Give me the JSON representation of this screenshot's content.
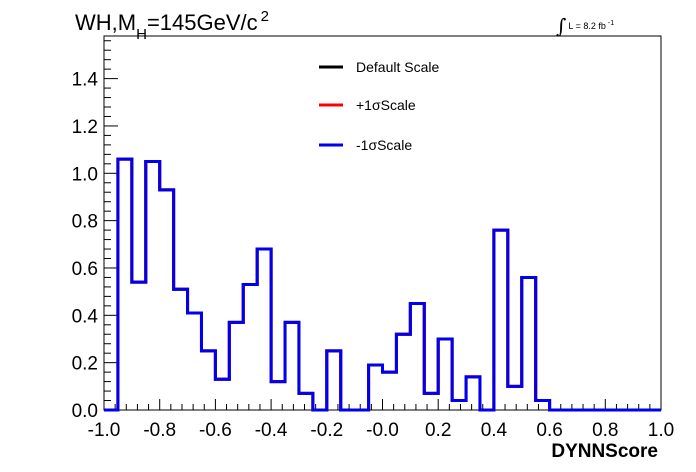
{
  "title": {
    "prefix": "WH,M",
    "subscript": "H",
    "value": "=145GeV/c",
    "superscript": "2"
  },
  "luminosity": {
    "integral_symbol": "∫",
    "text": "L = 8.2 fb",
    "superscript": "-1"
  },
  "chart_data": {
    "type": "line",
    "style": "step-histogram",
    "title": "WH,M_H=145GeV/c^2",
    "xlabel": "DYNNScore",
    "ylabel": "",
    "xlim": [
      -1.0,
      1.0
    ],
    "ylim": [
      0.0,
      1.58
    ],
    "x_ticks": [
      "-1.0",
      "-0.8",
      "-0.6",
      "-0.4",
      "-0.2",
      "-0.0",
      "0.2",
      "0.4",
      "0.6",
      "0.8",
      "1.0"
    ],
    "y_ticks": [
      "0.0",
      "0.2",
      "0.4",
      "0.6",
      "0.8",
      "1.0",
      "1.2",
      "1.4"
    ],
    "bin_edges": [
      -1.0,
      -0.95,
      -0.9,
      -0.85,
      -0.8,
      -0.75,
      -0.7,
      -0.65,
      -0.6,
      -0.55,
      -0.5,
      -0.45,
      -0.4,
      -0.35,
      -0.3,
      -0.25,
      -0.2,
      -0.15,
      -0.1,
      -0.05,
      0.0,
      0.05,
      0.1,
      0.15,
      0.2,
      0.25,
      0.3,
      0.35,
      0.4,
      0.45,
      0.5,
      0.55,
      0.6,
      0.65,
      0.7,
      0.75,
      0.8,
      0.85,
      0.9,
      0.95,
      1.0
    ],
    "series": [
      {
        "name": "Default Scale",
        "color": "#000000",
        "values": [
          0.0,
          1.06,
          0.54,
          1.05,
          0.93,
          0.51,
          0.41,
          0.25,
          0.13,
          0.37,
          0.53,
          0.68,
          0.12,
          0.37,
          0.07,
          0.0,
          0.25,
          0.0,
          0.0,
          0.19,
          0.16,
          0.32,
          0.45,
          0.07,
          0.3,
          0.04,
          0.14,
          0.0,
          0.76,
          0.1,
          0.56,
          0.04,
          0.0,
          0.0,
          0.0,
          0.0,
          0.0,
          0.0,
          0.0,
          0.0
        ]
      },
      {
        "name": "+1σScale",
        "color": "#ff0000",
        "values": [
          0.0,
          1.06,
          0.54,
          1.05,
          0.93,
          0.51,
          0.41,
          0.25,
          0.13,
          0.37,
          0.53,
          0.68,
          0.12,
          0.37,
          0.07,
          0.0,
          0.25,
          0.0,
          0.0,
          0.19,
          0.16,
          0.32,
          0.45,
          0.07,
          0.3,
          0.04,
          0.14,
          0.0,
          0.76,
          0.1,
          0.56,
          0.04,
          0.0,
          0.0,
          0.0,
          0.0,
          0.0,
          0.0,
          0.0,
          0.0
        ]
      },
      {
        "name": "-1σScale",
        "color": "#0000ee",
        "values": [
          0.0,
          1.06,
          0.54,
          1.05,
          0.93,
          0.51,
          0.41,
          0.25,
          0.13,
          0.37,
          0.53,
          0.68,
          0.12,
          0.37,
          0.07,
          0.0,
          0.25,
          0.0,
          0.0,
          0.19,
          0.16,
          0.32,
          0.45,
          0.07,
          0.3,
          0.04,
          0.14,
          0.0,
          0.76,
          0.1,
          0.56,
          0.04,
          0.0,
          0.0,
          0.0,
          0.0,
          0.0,
          0.0,
          0.0,
          0.0
        ]
      }
    ],
    "grid": false,
    "legend_position": "top-center"
  }
}
